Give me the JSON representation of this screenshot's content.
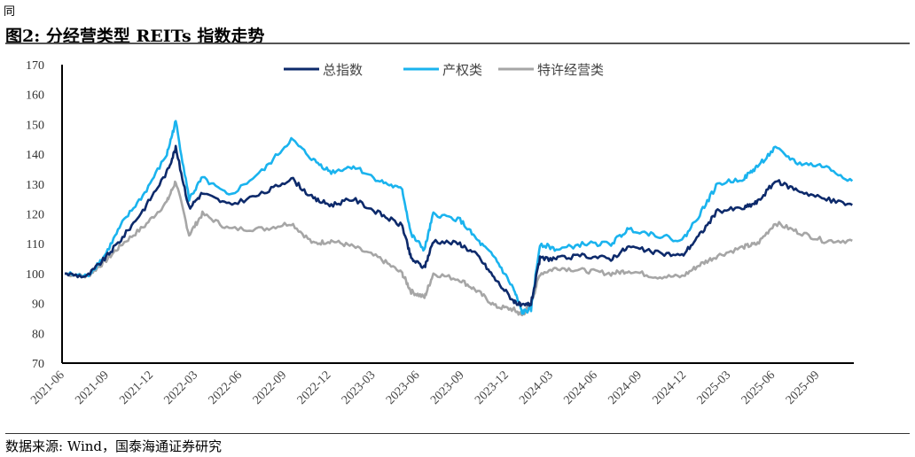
{
  "corner_text": "同",
  "title": "图2:  分经营类型 REITs 指数走势",
  "source": "数据来源:  Wind，国泰海通证券研究",
  "chart_data": {
    "type": "line",
    "title": "分经营类型 REITs 指数走势",
    "ylim": [
      70,
      170
    ],
    "yticks": [
      70,
      80,
      90,
      100,
      110,
      120,
      130,
      140,
      150,
      160,
      170
    ],
    "xlim_months_from_2021_06": [
      0,
      53.3
    ],
    "xticks": [
      {
        "m": 0,
        "label": "2021-06"
      },
      {
        "m": 3,
        "label": "2021-09"
      },
      {
        "m": 6,
        "label": "2021-12"
      },
      {
        "m": 9,
        "label": "2022-03"
      },
      {
        "m": 12,
        "label": "2022-06"
      },
      {
        "m": 15,
        "label": "2022-09"
      },
      {
        "m": 18,
        "label": "2022-12"
      },
      {
        "m": 21,
        "label": "2023-03"
      },
      {
        "m": 24,
        "label": "2023-06"
      },
      {
        "m": 27,
        "label": "2023-09"
      },
      {
        "m": 30,
        "label": "2023-12"
      },
      {
        "m": 33,
        "label": "2024-03"
      },
      {
        "m": 36,
        "label": "2024-06"
      },
      {
        "m": 39,
        "label": "2024-09"
      },
      {
        "m": 42,
        "label": "2024-12"
      },
      {
        "m": 45,
        "label": "2025-03"
      },
      {
        "m": 48,
        "label": "2025-06"
      },
      {
        "m": 51,
        "label": "2025-09"
      }
    ],
    "x": [
      0,
      1.5,
      2.7,
      3.9,
      5.4,
      6.9,
      7.5,
      8.4,
      9.3,
      11.1,
      13.5,
      15.3,
      16.8,
      18,
      19.5,
      21.3,
      22.8,
      23.4,
      24.3,
      24.9,
      26.7,
      27.9,
      29.1,
      30.3,
      30.9,
      31.5,
      32.1,
      33.3,
      35.1,
      36.9,
      38.1,
      39.9,
      41.7,
      42.9,
      44.1,
      45.9,
      46.8,
      48,
      49.5,
      51.3,
      53.2
    ],
    "legend_position": "top-center",
    "series": [
      {
        "name": "总指数",
        "color": "#0d2a6b",
        "values": [
          100,
          99,
          105,
          112,
          122,
          134,
          142,
          122,
          127,
          123,
          127,
          132,
          125,
          123,
          125,
          120,
          116,
          105,
          102,
          111,
          110,
          106,
          98,
          91,
          89,
          90,
          105,
          105,
          106,
          105,
          109,
          107,
          106,
          113,
          121,
          122,
          124,
          131,
          128,
          125,
          123
        ]
      },
      {
        "name": "产权类",
        "color": "#1ab3ee",
        "values": [
          100,
          99,
          106,
          117,
          127,
          140,
          151,
          125,
          132,
          126,
          135,
          145,
          138,
          134,
          136,
          131,
          128,
          113,
          108,
          120,
          118,
          111,
          105,
          95,
          87,
          88,
          110,
          108,
          110,
          110,
          115,
          113,
          111,
          120,
          130,
          132,
          136,
          142,
          137,
          136,
          131
        ]
      },
      {
        "name": "特许经营类",
        "color": "#a6a6a6",
        "values": [
          100,
          99,
          104,
          110,
          116,
          124,
          131,
          113,
          120,
          115,
          115,
          117,
          110,
          111,
          109,
          105,
          100,
          94,
          92,
          100,
          98,
          94,
          89,
          88,
          86,
          90,
          100,
          102,
          101,
          100,
          101,
          99,
          99,
          103,
          106,
          109,
          110,
          117,
          114,
          111,
          111
        ]
      }
    ]
  }
}
